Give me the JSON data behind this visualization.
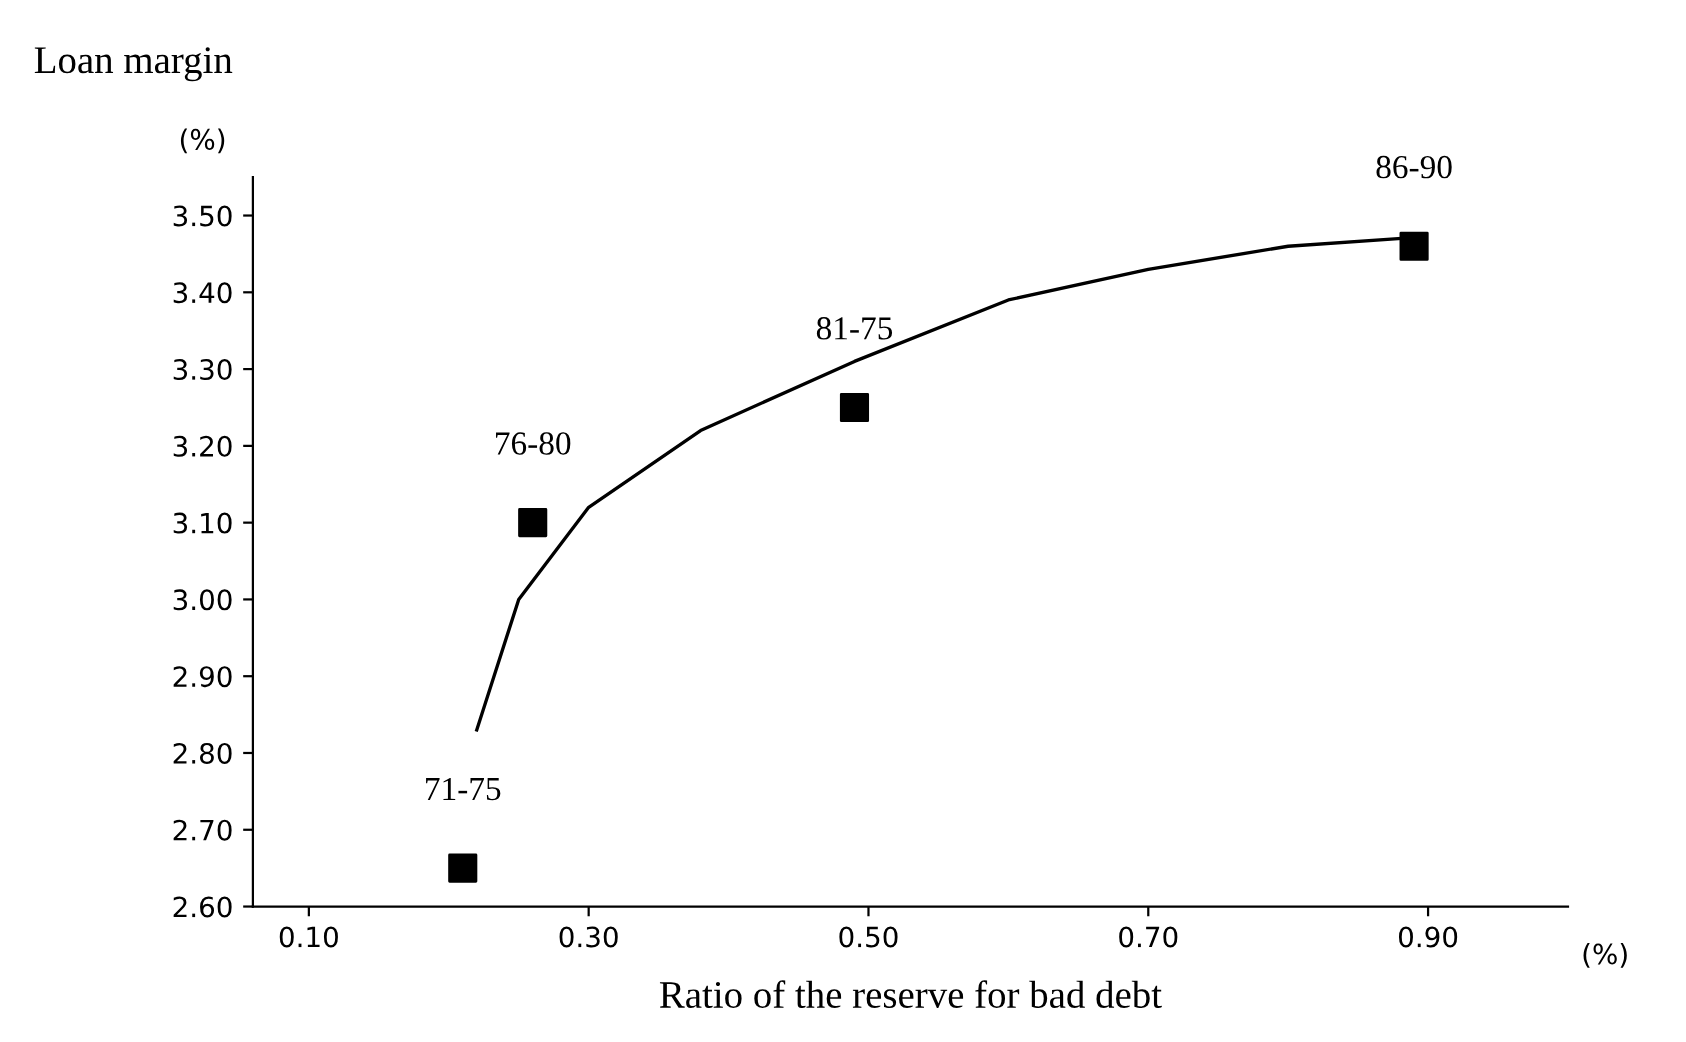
{
  "chart_data": {
    "type": "scatter",
    "title": "Loan margin",
    "xlabel": "Ratio of the reserve for bad debt",
    "ylabel": "(%)",
    "annotations": [
      "(%)",
      {
        "text": "71-75",
        "x": 0.21,
        "y": 2.65
      },
      {
        "text": "76-80",
        "x": 0.26,
        "y": 3.1
      },
      {
        "text": "81-75",
        "x": 0.49,
        "y": 3.25
      },
      {
        "text": "86-90",
        "x": 0.89,
        "y": 3.46
      }
    ],
    "x": [
      0.21,
      0.26,
      0.49,
      0.89
    ],
    "grid": false,
    "legend": false,
    "series": [
      {
        "color": "#000000",
        "marker": "square",
        "values": [
          2.65,
          3.1,
          3.25,
          3.46
        ]
      },
      {
        "type": "line",
        "color": "#000000",
        "x": [
          0.22,
          0.25,
          0.3,
          0.38,
          0.49,
          0.6,
          0.7,
          0.8,
          0.88
        ],
        "values": [
          2.83,
          3.0,
          3.12,
          3.22,
          3.31,
          3.39,
          3.43,
          3.46,
          3.47
        ]
      }
    ],
    "xlim": [
      0.06,
      1.0
    ],
    "ylim": [
      2.6,
      3.55
    ],
    "xticks": [
      {
        "value": 0.1,
        "label": "0.10"
      },
      {
        "value": 0.3,
        "label": "0.30"
      },
      {
        "value": 0.5,
        "label": "0.50"
      },
      {
        "value": 0.7,
        "label": "0.70"
      },
      {
        "value": 0.9,
        "label": "0.90"
      }
    ],
    "yticks": [
      {
        "value": 2.6,
        "label": "2.60"
      },
      {
        "value": 2.7,
        "label": "2.70"
      },
      {
        "value": 2.8,
        "label": "2.80"
      },
      {
        "value": 2.9,
        "label": "2.90"
      },
      {
        "value": 3.0,
        "label": "3.00"
      },
      {
        "value": 3.1,
        "label": "3.10"
      },
      {
        "value": 3.2,
        "label": "3.20"
      },
      {
        "value": 3.3,
        "label": "3.30"
      },
      {
        "value": 3.4,
        "label": "3.40"
      },
      {
        "value": 3.5,
        "label": "3.50"
      }
    ]
  }
}
